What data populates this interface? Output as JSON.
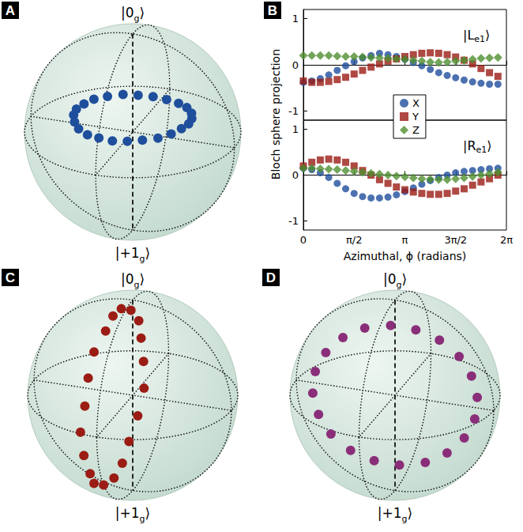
{
  "chart_data": [
    {
      "panel": "A",
      "type": "bloch_sphere",
      "top_label": [
        "|0",
        "g",
        "⟩"
      ],
      "bottom_label": [
        "|+1",
        "g",
        "⟩"
      ],
      "xlim": [
        -1,
        1
      ],
      "ylim": [
        -1,
        1
      ],
      "zlim": [
        -1,
        1
      ],
      "color": "#1f4e9c",
      "marker": "circle",
      "points": {
        "x": [
          0.55,
          0.53,
          0.48,
          0.39,
          0.28,
          0.14,
          0.0,
          -0.14,
          -0.27,
          -0.39,
          -0.47,
          -0.53,
          -0.55,
          -0.53,
          -0.48,
          -0.39,
          -0.27,
          -0.14,
          0.01,
          0.14,
          0.28,
          0.39,
          0.48,
          0.53
        ],
        "y": [
          0.0,
          0.14,
          0.27,
          0.39,
          0.48,
          0.53,
          0.55,
          0.53,
          0.48,
          0.39,
          0.28,
          0.14,
          0.0,
          -0.14,
          -0.27,
          -0.39,
          -0.48,
          -0.53,
          -0.55,
          -0.53,
          -0.47,
          -0.39,
          -0.27,
          -0.14
        ],
        "z": [
          0.15,
          0.16,
          0.17,
          0.17,
          0.18,
          0.18,
          0.17,
          0.16,
          0.15,
          0.14,
          0.13,
          0.12,
          0.12,
          0.12,
          0.13,
          0.13,
          0.14,
          0.14,
          0.15,
          0.15,
          0.15,
          0.14,
          0.14,
          0.15
        ]
      }
    },
    {
      "panel": "B",
      "type": "scatter",
      "xlabel": "Azimuthal, ϕ (radians)",
      "ylabel": "Bloch sphere projection",
      "xlim": [
        0,
        6.2832
      ],
      "xticks": [
        0,
        {
          "value": 1.5708,
          "label": "π/2"
        },
        {
          "value": 3.1416,
          "label": "π"
        },
        {
          "value": 4.7124,
          "label": "3π/2"
        },
        {
          "value": 6.2832,
          "label": "2π"
        }
      ],
      "ylim": [
        -1.2,
        1.2
      ],
      "yticks": [
        -1,
        0,
        1
      ],
      "legend": "center",
      "x": [
        0,
        0.2618,
        0.5236,
        0.7854,
        1.0472,
        1.309,
        1.5708,
        1.8326,
        2.0944,
        2.3562,
        2.618,
        2.8798,
        3.1416,
        3.4034,
        3.6652,
        3.927,
        4.1888,
        4.4506,
        4.7124,
        4.9742,
        5.236,
        5.4978,
        5.7596,
        6.0214
      ],
      "subplots": [
        {
          "label": [
            "|L",
            "e1",
            "⟩"
          ],
          "series": [
            {
              "name": "X",
              "color": "#1f4e9c",
              "marker": "circle",
              "values": [
                -0.38,
                -0.35,
                -0.3,
                -0.22,
                -0.12,
                -0.02,
                0.07,
                0.15,
                0.2,
                0.25,
                0.22,
                0.18,
                0.12,
                0.05,
                -0.02,
                -0.1,
                -0.17,
                -0.23,
                -0.28,
                -0.33,
                -0.37,
                -0.4,
                -0.42,
                -0.42
              ]
            },
            {
              "name": "Y",
              "color": "#9b1c14",
              "marker": "square",
              "values": [
                -0.35,
                -0.38,
                -0.38,
                -0.36,
                -0.32,
                -0.27,
                -0.2,
                -0.12,
                -0.05,
                0.02,
                0.08,
                0.13,
                0.18,
                0.22,
                0.25,
                0.26,
                0.25,
                0.22,
                0.17,
                0.1,
                0.02,
                -0.08,
                -0.17,
                -0.25
              ]
            },
            {
              "name": "Z",
              "color": "#4f8f2f",
              "marker": "diamond",
              "values": [
                0.2,
                0.2,
                0.2,
                0.2,
                0.19,
                0.18,
                0.18,
                0.17,
                0.16,
                0.15,
                0.14,
                0.13,
                0.12,
                0.1,
                0.08,
                0.06,
                0.05,
                0.06,
                0.08,
                0.1,
                0.12,
                0.14,
                0.15,
                0.16
              ]
            }
          ]
        },
        {
          "label": [
            "|R",
            "e1",
            "⟩"
          ],
          "series": [
            {
              "name": "X",
              "color": "#1f4e9c",
              "marker": "circle",
              "values": [
                0.15,
                0.12,
                0.05,
                -0.05,
                -0.18,
                -0.3,
                -0.4,
                -0.47,
                -0.5,
                -0.5,
                -0.48,
                -0.43,
                -0.36,
                -0.28,
                -0.2,
                -0.12,
                -0.05,
                0.0,
                0.05,
                0.08,
                0.1,
                0.12,
                0.14,
                0.15
              ]
            },
            {
              "name": "Y",
              "color": "#9b1c14",
              "marker": "square",
              "values": [
                0.2,
                0.28,
                0.33,
                0.35,
                0.33,
                0.28,
                0.2,
                0.1,
                0.0,
                -0.1,
                -0.18,
                -0.26,
                -0.32,
                -0.37,
                -0.4,
                -0.42,
                -0.42,
                -0.4,
                -0.35,
                -0.3,
                -0.22,
                -0.15,
                -0.08,
                0.0
              ]
            },
            {
              "name": "Z",
              "color": "#4f8f2f",
              "marker": "diamond",
              "values": [
                0.15,
                0.15,
                0.14,
                0.13,
                0.12,
                0.1,
                0.08,
                0.06,
                0.04,
                0.02,
                0.0,
                -0.02,
                -0.04,
                -0.06,
                -0.08,
                -0.09,
                -0.1,
                -0.1,
                -0.08,
                -0.06,
                -0.03,
                0.0,
                0.03,
                0.06
              ]
            }
          ]
        }
      ]
    },
    {
      "panel": "C",
      "type": "bloch_sphere",
      "top_label": [
        "|0",
        "g",
        "⟩"
      ],
      "bottom_label": [
        "|+1",
        "g",
        "⟩"
      ],
      "xlim": [
        -1,
        1
      ],
      "ylim": [
        -1,
        1
      ],
      "zlim": [
        -1,
        1
      ],
      "color": "#9b1c14",
      "marker": "circle",
      "points": {
        "x": [
          0.0,
          0.26,
          0.5,
          0.69,
          0.81,
          0.85,
          0.81,
          0.69,
          0.5,
          0.26,
          0.0,
          -0.26,
          -0.5,
          -0.69,
          -0.81,
          -0.85,
          -0.81,
          -0.69,
          -0.5,
          -0.26
        ],
        "y": [
          -0.2,
          -0.18,
          -0.21,
          -0.2,
          -0.19,
          -0.22,
          -0.2,
          -0.18,
          -0.21,
          -0.2,
          -0.19,
          -0.2,
          -0.22,
          -0.2,
          -0.18,
          -0.2,
          -0.21,
          -0.19,
          -0.2,
          -0.21
        ],
        "z": [
          0.8,
          0.76,
          0.64,
          0.45,
          0.21,
          -0.05,
          -0.31,
          -0.55,
          -0.74,
          -0.86,
          -0.9,
          -0.86,
          -0.74,
          -0.55,
          -0.31,
          -0.05,
          0.21,
          0.45,
          0.64,
          0.76
        ]
      }
    },
    {
      "panel": "D",
      "type": "bloch_sphere",
      "top_label": [
        "|0",
        "g",
        "⟩"
      ],
      "bottom_label": [
        "|+1",
        "g",
        "⟩"
      ],
      "xlim": [
        -1,
        1
      ],
      "ylim": [
        -1,
        1
      ],
      "zlim": [
        -1,
        1
      ],
      "color": "#8a2e7a",
      "marker": "circle",
      "points": {
        "x": [
          0.08,
          0.0,
          -0.08,
          -0.15,
          -0.2,
          -0.24,
          -0.25,
          -0.24,
          -0.21,
          -0.15,
          -0.08,
          0.0,
          0.08,
          0.15,
          0.2,
          0.24,
          0.25,
          0.24,
          0.21,
          0.15
        ],
        "y": [
          0.24,
          0.45,
          0.62,
          0.72,
          0.76,
          0.72,
          0.61,
          0.44,
          0.23,
          -0.01,
          -0.24,
          -0.45,
          -0.62,
          -0.72,
          -0.76,
          -0.72,
          -0.61,
          -0.44,
          -0.23,
          0.01
        ],
        "z": [
          0.76,
          0.65,
          0.47,
          0.25,
          0.01,
          -0.24,
          -0.46,
          -0.64,
          -0.76,
          -0.8,
          -0.76,
          -0.65,
          -0.47,
          -0.25,
          -0.01,
          0.24,
          0.46,
          0.64,
          0.76,
          0.8
        ]
      }
    }
  ]
}
